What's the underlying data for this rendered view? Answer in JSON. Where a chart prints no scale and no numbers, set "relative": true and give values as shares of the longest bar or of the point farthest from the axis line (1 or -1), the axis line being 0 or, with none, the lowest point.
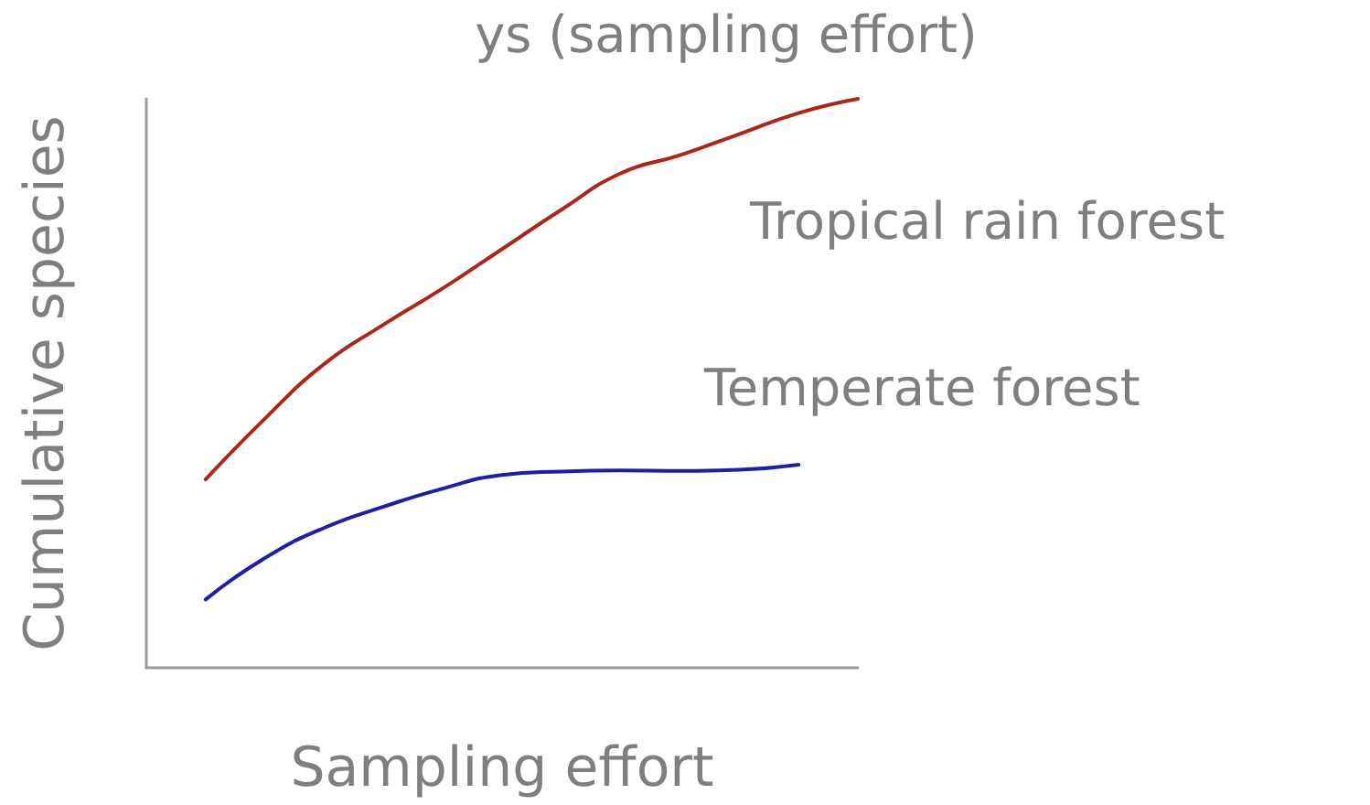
{
  "chart_data": {
    "type": "line",
    "title": "ys (sampling effort)",
    "xlabel": "Sampling effort",
    "ylabel": "Cumulative species",
    "relative": true,
    "grid": false,
    "legend": false,
    "marker": "none",
    "line_style": "solid",
    "categories": [
      null,
      null,
      null,
      null,
      null,
      null,
      null,
      null,
      null,
      null,
      null,
      null,
      null
    ],
    "series": [
      {
        "name": "Tropical rain forest",
        "color": "#a8281a",
        "values": [
          null,
          0.331,
          0.438,
          0.534,
          0.603,
          0.667,
          0.736,
          0.805,
          0.869,
          0.901,
          0.938,
          0.975,
          1
        ]
      },
      {
        "name": "Temperate forest",
        "color": "#1f1fa0",
        "values": [
          null,
          0.12,
          0.193,
          0.246,
          0.283,
          0.315,
          0.339,
          0.345,
          0.347,
          0.346,
          0.348,
          0.357,
          null
        ]
      }
    ]
  }
}
